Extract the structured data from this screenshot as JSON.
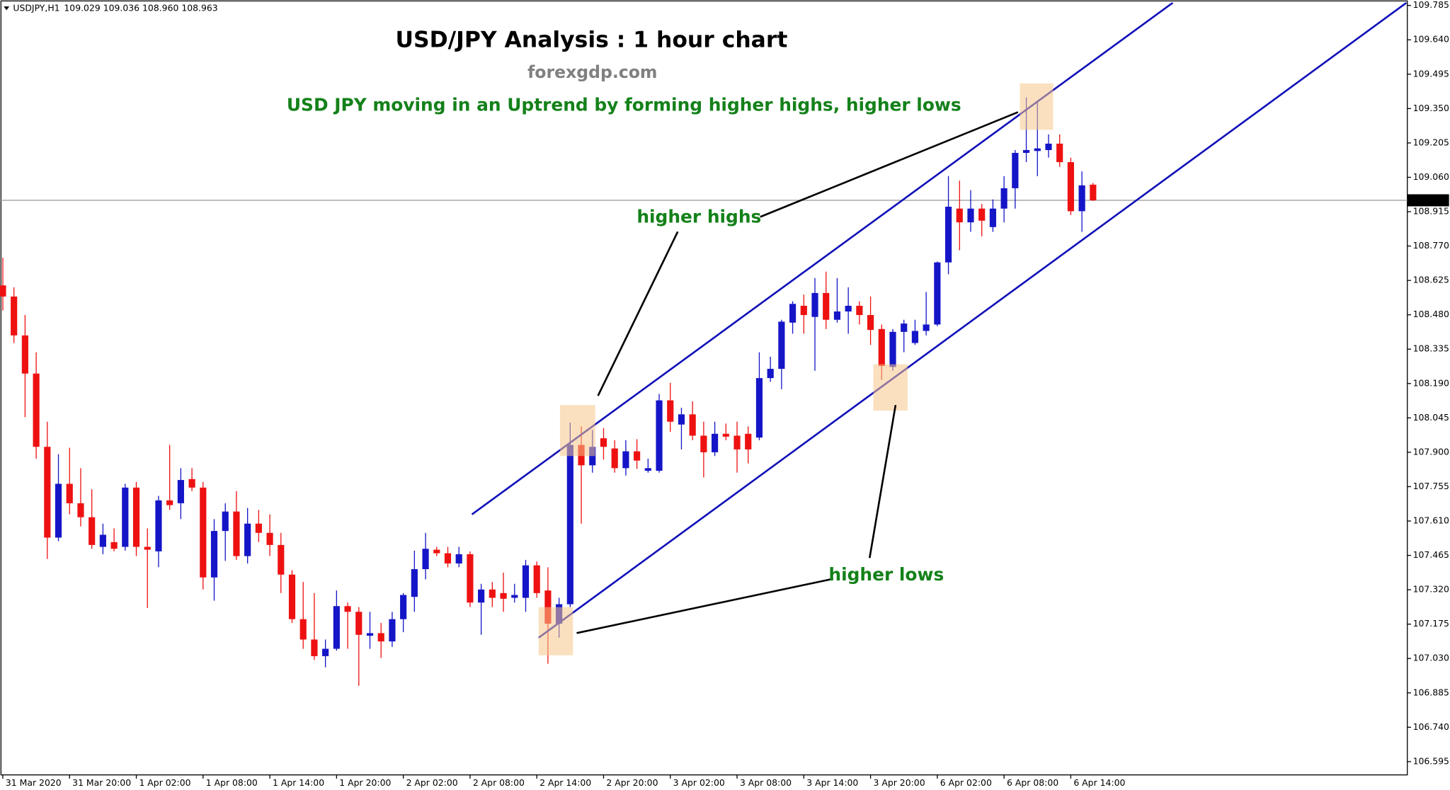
{
  "chart_data": {
    "type": "candlestick",
    "symbol": "USDJPY,H1",
    "quote": "109.029 109.036 108.960 108.963",
    "title": "USD/JPY Analysis : 1 hour chart",
    "website": "forexgdp.com",
    "subtitle": "USD JPY moving in an Uptrend by forming higher highs, higher lows",
    "annotation_highs": "higher highs",
    "annotation_lows": "higher lows",
    "up_color": "#1515c8",
    "down_color": "#ee1111",
    "ylim": [
      106.539,
      109.808
    ],
    "yticks": [
      109.785,
      {
        "value": 109.64,
        "label": "109.640"
      },
      109.495,
      {
        "value": 109.35,
        "label": "109.350"
      },
      109.205,
      {
        "value": 109.06,
        "label": "109.060"
      },
      108.915,
      {
        "value": 108.77,
        "label": "108.770"
      },
      108.625,
      {
        "value": 108.48,
        "label": "108.480"
      },
      108.335,
      {
        "value": 108.19,
        "label": "108.190"
      },
      108.045,
      {
        "value": 107.9,
        "label": "107.900"
      },
      107.755,
      {
        "value": 107.61,
        "label": "107.610"
      },
      107.465,
      {
        "value": 107.32,
        "label": "107.320"
      },
      107.175,
      {
        "value": 107.03,
        "label": "107.030"
      },
      106.885,
      {
        "value": 106.74,
        "label": "106.740"
      },
      106.595
    ],
    "current_price": {
      "value": 108.963,
      "label": "108.963"
    },
    "categories": [
      "31 Mar 2020",
      null,
      null,
      null,
      null,
      null,
      "31 Mar 20:00",
      null,
      null,
      null,
      null,
      null,
      "1 Apr 02:00",
      null,
      null,
      null,
      null,
      null,
      "1 Apr 08:00",
      null,
      null,
      null,
      null,
      null,
      "1 Apr 14:00",
      null,
      null,
      null,
      null,
      null,
      "1 Apr 20:00",
      null,
      null,
      null,
      null,
      null,
      "2 Apr 02:00",
      null,
      null,
      null,
      null,
      null,
      "2 Apr 08:00",
      null,
      null,
      null,
      null,
      null,
      "2 Apr 14:00",
      null,
      null,
      null,
      null,
      null,
      "2 Apr 20:00",
      null,
      null,
      null,
      null,
      null,
      "3 Apr 02:00",
      null,
      null,
      null,
      null,
      null,
      "3 Apr 08:00",
      null,
      null,
      null,
      null,
      null,
      "3 Apr 14:00",
      null,
      null,
      null,
      null,
      null,
      "3 Apr 20:00",
      null,
      null,
      null,
      null,
      null,
      "6 Apr 02:00",
      null,
      null,
      null,
      null,
      null,
      "6 Apr 08:00",
      null,
      null,
      null,
      null,
      null,
      "6 Apr 14:00",
      null,
      null
    ],
    "ohlc": [
      [
        108.604,
        108.721,
        108.498,
        108.557
      ],
      [
        108.557,
        108.596,
        108.361,
        108.393
      ],
      [
        108.393,
        108.479,
        108.048,
        108.232
      ],
      [
        108.232,
        108.322,
        107.873,
        107.923
      ],
      [
        107.923,
        108.029,
        107.45,
        107.54
      ],
      [
        107.54,
        107.892,
        107.525,
        107.767
      ],
      [
        107.767,
        107.919,
        107.638,
        107.685
      ],
      [
        107.685,
        107.833,
        107.587,
        107.626
      ],
      [
        107.626,
        107.744,
        107.493,
        107.509
      ],
      [
        107.501,
        107.599,
        107.47,
        107.552
      ],
      [
        107.521,
        107.579,
        107.482,
        107.493
      ],
      [
        107.501,
        107.767,
        107.485,
        107.751
      ],
      [
        107.751,
        107.775,
        107.462,
        107.501
      ],
      [
        107.501,
        107.579,
        107.243,
        107.489
      ],
      [
        107.482,
        107.716,
        107.415,
        107.697
      ],
      [
        107.697,
        107.931,
        107.657,
        107.677
      ],
      [
        107.685,
        107.833,
        107.618,
        107.783
      ],
      [
        107.787,
        107.833,
        107.736,
        107.751
      ],
      [
        107.751,
        107.775,
        107.321,
        107.372
      ],
      [
        107.372,
        107.618,
        107.274,
        107.568
      ],
      [
        107.568,
        107.685,
        107.442,
        107.65
      ],
      [
        107.65,
        107.736,
        107.446,
        107.462
      ],
      [
        107.462,
        107.665,
        107.431,
        107.599
      ],
      [
        107.599,
        107.657,
        107.521,
        107.56
      ],
      [
        107.56,
        107.638,
        107.462,
        107.509
      ],
      [
        107.509,
        107.56,
        107.306,
        107.384
      ],
      [
        107.384,
        107.403,
        107.18,
        107.196
      ],
      [
        107.196,
        107.353,
        107.071,
        107.11
      ],
      [
        107.11,
        107.306,
        107.024,
        107.04
      ],
      [
        107.04,
        107.11,
        106.993,
        107.071
      ],
      [
        107.071,
        107.317,
        107.063,
        107.251
      ],
      [
        107.251,
        107.266,
        107.071,
        107.227
      ],
      [
        107.227,
        107.247,
        106.915,
        107.13
      ],
      [
        107.126,
        107.227,
        107.071,
        107.137
      ],
      [
        107.137,
        107.18,
        107.032,
        107.102
      ],
      [
        107.102,
        107.227,
        107.079,
        107.196
      ],
      [
        107.196,
        107.306,
        107.141,
        107.298
      ],
      [
        107.29,
        107.485,
        107.227,
        107.407
      ],
      [
        107.407,
        107.56,
        107.364,
        107.493
      ],
      [
        107.489,
        107.501,
        107.462,
        107.474
      ],
      [
        107.474,
        107.501,
        107.415,
        107.431
      ],
      [
        107.431,
        107.501,
        107.415,
        107.47
      ],
      [
        107.47,
        107.482,
        107.247,
        107.266
      ],
      [
        107.266,
        107.345,
        107.13,
        107.321
      ],
      [
        107.321,
        107.353,
        107.247,
        107.286
      ],
      [
        107.306,
        107.392,
        107.227,
        107.282
      ],
      [
        107.286,
        107.345,
        107.266,
        107.298
      ],
      [
        107.286,
        107.446,
        107.227,
        107.423
      ],
      [
        107.423,
        107.439,
        107.286,
        107.306
      ],
      [
        107.317,
        107.415,
        107.008,
        107.177
      ],
      [
        107.177,
        107.286,
        107.118,
        107.259
      ],
      [
        107.259,
        108.025,
        107.247,
        107.931
      ],
      [
        107.931,
        108.009,
        107.599,
        107.845
      ],
      [
        107.845,
        107.994,
        107.814,
        107.923
      ],
      [
        107.959,
        108.002,
        107.869,
        107.923
      ],
      [
        107.916,
        107.951,
        107.814,
        107.833
      ],
      [
        107.833,
        107.951,
        107.802,
        107.904
      ],
      [
        107.904,
        107.955,
        107.83,
        107.865
      ],
      [
        107.822,
        107.873,
        107.814,
        107.833
      ],
      [
        107.822,
        108.146,
        107.814,
        108.119
      ],
      [
        108.119,
        108.193,
        107.986,
        108.029
      ],
      [
        108.017,
        108.088,
        107.912,
        108.06
      ],
      [
        108.06,
        108.115,
        107.951,
        107.97
      ],
      [
        107.97,
        108.029,
        107.794,
        107.9
      ],
      [
        107.9,
        108.029,
        107.884,
        107.978
      ],
      [
        107.978,
        108.021,
        107.951,
        107.966
      ],
      [
        107.97,
        108.029,
        107.814,
        107.912
      ],
      [
        107.978,
        108.009,
        107.853,
        107.912
      ],
      [
        107.962,
        108.322,
        107.951,
        108.213
      ],
      [
        108.213,
        108.303,
        108.197,
        108.252
      ],
      [
        108.252,
        108.459,
        108.166,
        108.451
      ],
      [
        108.447,
        108.537,
        108.4,
        108.526
      ],
      [
        108.518,
        108.565,
        108.4,
        108.479
      ],
      [
        108.471,
        108.635,
        108.244,
        108.572
      ],
      [
        108.572,
        108.662,
        108.42,
        108.459
      ],
      [
        108.459,
        108.635,
        108.447,
        108.494
      ],
      [
        108.494,
        108.596,
        108.4,
        108.518
      ],
      [
        108.518,
        108.537,
        108.439,
        108.479
      ],
      [
        108.479,
        108.557,
        108.353,
        108.416
      ],
      [
        108.42,
        108.439,
        108.205,
        108.264
      ],
      [
        108.26,
        108.42,
        108.244,
        108.408
      ],
      [
        108.408,
        108.459,
        108.322,
        108.443
      ],
      [
        108.361,
        108.459,
        108.353,
        108.412
      ],
      [
        108.412,
        108.576,
        108.393,
        108.439
      ],
      [
        108.439,
        108.705,
        108.432,
        108.701
      ],
      [
        108.701,
        109.065,
        108.651,
        108.936
      ],
      [
        108.928,
        109.046,
        108.752,
        108.87
      ],
      [
        108.87,
        109.006,
        108.83,
        108.928
      ],
      [
        108.928,
        108.948,
        108.811,
        108.877
      ],
      [
        108.85,
        108.967,
        108.83,
        108.928
      ],
      [
        108.928,
        109.065,
        108.87,
        109.014
      ],
      [
        109.014,
        109.175,
        108.928,
        109.163
      ],
      [
        109.163,
        109.397,
        109.124,
        109.175
      ],
      [
        109.171,
        109.378,
        109.065,
        109.182
      ],
      [
        109.175,
        109.241,
        109.143,
        109.202
      ],
      [
        109.202,
        109.241,
        109.104,
        109.124
      ],
      [
        109.124,
        109.143,
        108.901,
        108.917
      ],
      [
        108.917,
        109.085,
        108.83,
        109.026
      ],
      [
        109.029,
        109.036,
        108.96,
        108.963
      ]
    ]
  }
}
